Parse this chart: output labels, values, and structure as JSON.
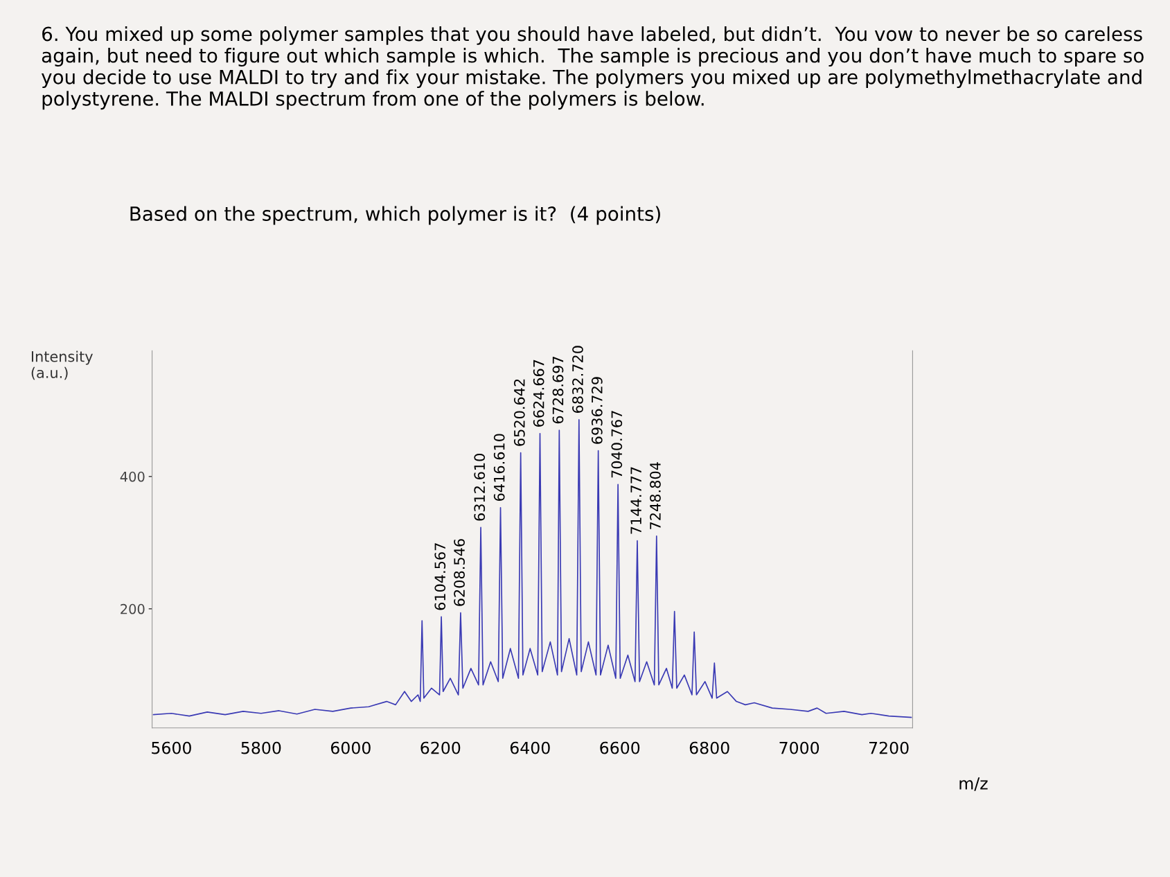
{
  "chart_data": {
    "type": "line",
    "title": "6. You mixed up some polymer samples that you should have labeled, but didn’t.  You vow to never be so careless again, but need to figure out which sample is which.  The sample is precious and you don’t have much to spare so you decide to use MALDI to try and fix your mistake. The polymers you mixed up are polymethylmethacrylate and polystyrene. The MALDI spectrum from one of the polymers is below.",
    "subtitle": "Based on the spectrum, which polymer is it?  (4 points)",
    "xlabel": "m/z",
    "ylabel": "Intensity\n(a.u.)",
    "xlim": [
      5557,
      7253
    ],
    "xticks": [
      5600,
      5800,
      6000,
      6200,
      6400,
      6600,
      6800,
      7000,
      7200
    ],
    "ylim": [
      20,
      590
    ],
    "yticks": [
      200,
      400
    ],
    "grid": false,
    "legend": false,
    "marker": "none",
    "line_style": "solid",
    "series": [
      {
        "color": "#3a3ab4",
        "x": [
          5560,
          5600,
          5640,
          5680,
          5720,
          5760,
          5800,
          5840,
          5880,
          5920,
          5960,
          6000,
          6040,
          6080,
          6100,
          6120,
          6135,
          6150,
          6155,
          6159,
          6163,
          6180,
          6198,
          6202,
          6206,
          6222,
          6240,
          6245,
          6250,
          6268,
          6285,
          6290,
          6295,
          6312,
          6329,
          6334,
          6339,
          6356,
          6374,
          6379,
          6384,
          6400,
          6417,
          6422,
          6427,
          6445,
          6461,
          6465,
          6470,
          6487,
          6504,
          6509,
          6514,
          6530,
          6547,
          6552,
          6557,
          6574,
          6591,
          6596,
          6601,
          6618,
          6634,
          6639,
          6644,
          6660,
          6677,
          6682,
          6687,
          6704,
          6717,
          6722,
          6727,
          6744,
          6761,
          6766,
          6771,
          6790,
          6806,
          6811,
          6816,
          6840,
          6860,
          6880,
          6900,
          6940,
          6980,
          7020,
          7040,
          7060,
          7100,
          7140,
          7160,
          7200,
          7250
        ],
        "values": [
          40,
          42,
          38,
          44,
          40,
          45,
          42,
          46,
          41,
          48,
          45,
          50,
          52,
          60,
          55,
          75,
          60,
          70,
          60,
          182,
          65,
          80,
          70,
          188,
          75,
          95,
          70,
          194,
          80,
          110,
          85,
          323,
          85,
          120,
          90,
          353,
          95,
          140,
          95,
          436,
          100,
          140,
          100,
          465,
          105,
          150,
          100,
          470,
          105,
          155,
          100,
          486,
          105,
          150,
          100,
          439,
          100,
          145,
          95,
          388,
          95,
          130,
          90,
          303,
          90,
          120,
          85,
          310,
          85,
          110,
          80,
          196,
          80,
          100,
          70,
          165,
          70,
          90,
          65,
          118,
          65,
          75,
          60,
          55,
          58,
          50,
          48,
          45,
          50,
          42,
          45,
          40,
          42,
          38,
          36
        ]
      }
    ],
    "annotations": [
      {
        "text": "6104.567",
        "x": 6202,
        "y": 188
      },
      {
        "text": "6208.546",
        "x": 6245,
        "y": 194
      },
      {
        "text": "6312.610",
        "x": 6290,
        "y": 323
      },
      {
        "text": "6416.610",
        "x": 6334,
        "y": 353
      },
      {
        "text": "6520.642",
        "x": 6379,
        "y": 436
      },
      {
        "text": "6624.667",
        "x": 6422,
        "y": 465
      },
      {
        "text": "6728.697",
        "x": 6465,
        "y": 470
      },
      {
        "text": "6832.720",
        "x": 6509,
        "y": 486
      },
      {
        "text": "6936.729",
        "x": 6552,
        "y": 439
      },
      {
        "text": "7040.767",
        "x": 6596,
        "y": 388
      },
      {
        "text": "7144.777",
        "x": 6639,
        "y": 303
      },
      {
        "text": "7248.804",
        "x": 6682,
        "y": 310
      }
    ]
  }
}
